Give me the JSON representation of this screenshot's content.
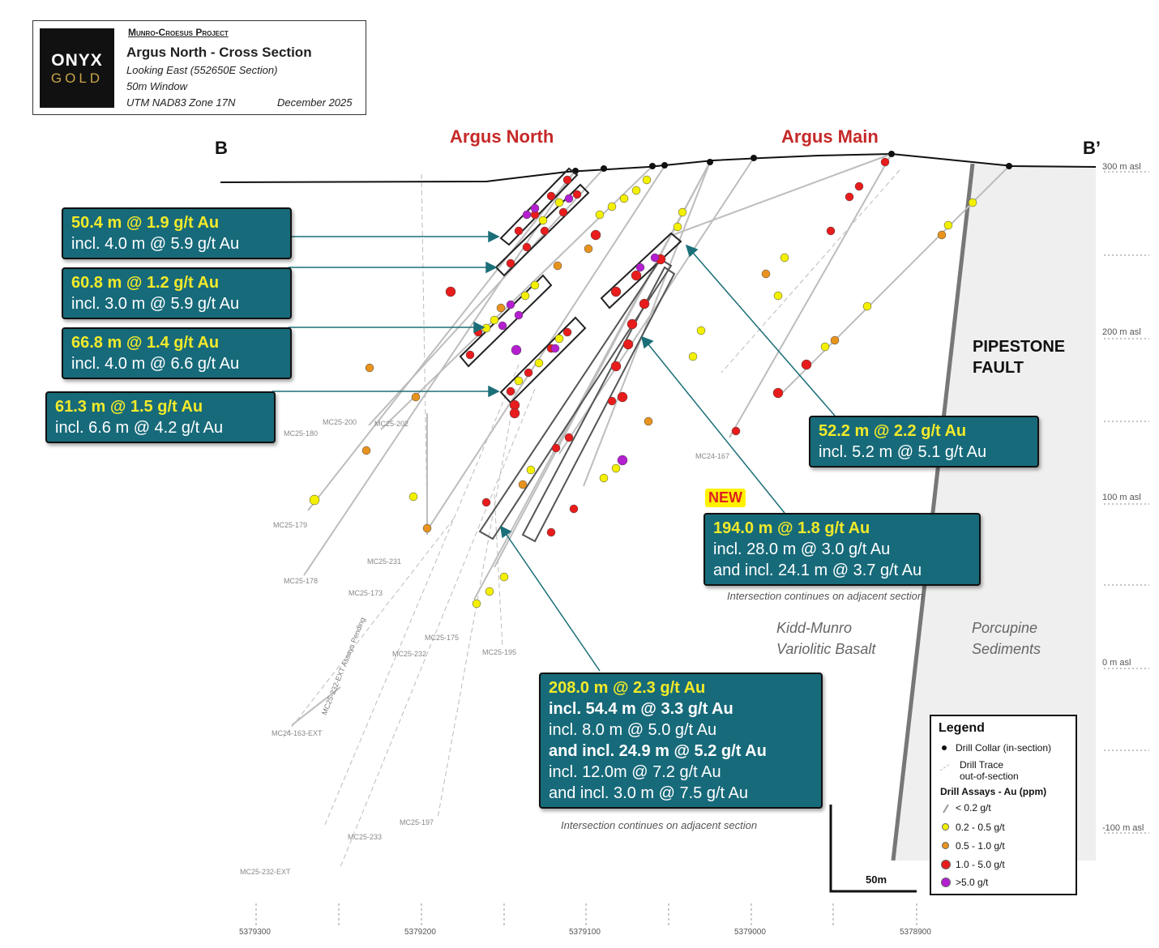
{
  "header": {
    "logo_top": "ONYX",
    "logo_bottom": "GOLD",
    "project": "Munro-Croesus Project",
    "title": "Argus North - Cross Section",
    "looking": "Looking East (552650E Section)",
    "window": "50m Window",
    "datum": "UTM NAD83 Zone 17N",
    "date": "December 2025"
  },
  "section_ends": {
    "left": "B",
    "right": "B’"
  },
  "zones": {
    "argus_north": "Argus North",
    "argus_main": "Argus Main"
  },
  "elevation_labels": [
    "300 m asl",
    "200 m asl",
    "100 m asl",
    "0 m asl",
    "-100 m asl"
  ],
  "northing_labels": [
    "5379300",
    "5379200",
    "5379100",
    "5379000",
    "5378900"
  ],
  "hole_labels": [
    "MC25-180",
    "MC25-200",
    "MC25-202",
    "MC24-167",
    "MC25-179",
    "MC25-231",
    "MC25-178",
    "MC25-173",
    "MC25-175",
    "MC25-232",
    "MC25-195",
    "MC24-163-EXT",
    "MC25-232-EXT Assays Pending",
    "MC25-197",
    "MC25-233",
    "MC25-232-EXT"
  ],
  "callouts": [
    {
      "id": "c1",
      "lines": [
        "50.4 m @ 1.9 g/t Au",
        "incl. 4.0 m @ 5.9 g/t Au"
      ]
    },
    {
      "id": "c2",
      "lines": [
        "60.8 m @ 1.2 g/t Au",
        "incl. 3.0 m @ 5.9 g/t Au"
      ]
    },
    {
      "id": "c3",
      "lines": [
        "66.8 m @ 1.4 g/t Au",
        "incl. 4.0 m @ 6.6 g/t Au"
      ]
    },
    {
      "id": "c4",
      "lines": [
        "61.3 m @ 1.5 g/t Au",
        "incl. 6.6 m @ 4.2 g/t Au"
      ]
    },
    {
      "id": "c5",
      "lines": [
        "52.2 m @ 2.2 g/t Au",
        "incl. 5.2 m @ 5.1 g/t Au"
      ]
    },
    {
      "id": "c6",
      "lines": [
        "194.0 m @ 1.8 g/t Au",
        "incl. 28.0 m @ 3.0 g/t Au",
        "and incl. 24.1 m @ 3.7 g/t Au"
      ]
    },
    {
      "id": "c7",
      "lines": [
        "208.0 m @ 2.3 g/t Au",
        "incl. 54.4 m @ 3.3 g/t Au",
        "incl. 8.0 m @ 5.0 g/t Au",
        "and incl. 24.9 m @ 5.2 g/t Au",
        "incl. 12.0m @ 7.2 g/t Au",
        "and incl. 3.0 m @ 7.5 g/t Au"
      ]
    }
  ],
  "new_badge": "NEW",
  "notes": {
    "adjacent_1": "Intersection continues on adjacent section",
    "adjacent_2": "Intersection continues on adjacent section"
  },
  "geology": {
    "basalt_1": "Kidd-Munro",
    "basalt_2": "Variolitic Basalt",
    "sed_1": "Porcupine",
    "sed_2": "Sediments",
    "fault_1": "PIPESTONE",
    "fault_2": "FAULT"
  },
  "scale_bar": "50m",
  "legend": {
    "title": "Legend",
    "collar": "Drill Collar (in-section)",
    "trace_1": "Drill Trace",
    "trace_2": "out-of-section",
    "assays_title": "Drill Assays - Au (ppm)",
    "items": [
      {
        "label": "< 0.2 g/t",
        "color": "#aaaaaa"
      },
      {
        "label": "0.2 - 0.5 g/t",
        "color": "#f3f000"
      },
      {
        "label": "0.5 - 1.0 g/t",
        "color": "#e8931e"
      },
      {
        "label": "1.0 - 5.0 g/t",
        "color": "#e81c1c"
      },
      {
        "label": ">5.0 g/t",
        "color": "#b41fd0"
      }
    ]
  },
  "colors": {
    "callout_bg": "#176a7a",
    "callout_highlight": "#f1ea2a",
    "zone_text": "#c62828",
    "sediment_fill": "#efefef"
  }
}
